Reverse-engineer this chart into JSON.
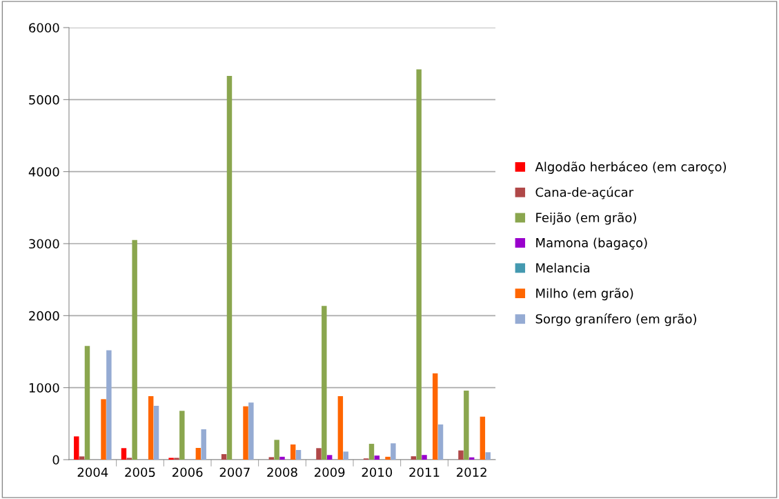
{
  "chart_data": {
    "type": "bar",
    "categories": [
      "2004",
      "2005",
      "2006",
      "2007",
      "2008",
      "2009",
      "2010",
      "2011",
      "2012"
    ],
    "series": [
      {
        "name": "Algodão herbáceo (em caroço)",
        "color": "#ff0000",
        "values": [
          323,
          160,
          25,
          0,
          0,
          0,
          0,
          0,
          0
        ]
      },
      {
        "name": "Cana-de-açúcar",
        "color": "#b04848",
        "values": [
          45,
          25,
          25,
          77,
          35,
          160,
          17,
          47,
          128
        ]
      },
      {
        "name": "Feijão (em grão)",
        "color": "#8aa64e",
        "values": [
          1580,
          3050,
          678,
          5330,
          275,
          2135,
          220,
          5420,
          959
        ]
      },
      {
        "name": "Mamona (bagaço)",
        "color": "#9900cc",
        "values": [
          0,
          0,
          0,
          0,
          40,
          64,
          57,
          65,
          32
        ]
      },
      {
        "name": "Melancia",
        "color": "#4499b0",
        "values": [
          0,
          0,
          0,
          0,
          0,
          0,
          0,
          0,
          0
        ]
      },
      {
        "name": "Milho (em grão)",
        "color": "#ff6600",
        "values": [
          840,
          882,
          163,
          741,
          211,
          882,
          40,
          1198,
          597
        ]
      },
      {
        "name": "Sorgo granífero (em grão)",
        "color": "#95abd3",
        "values": [
          1520,
          748,
          422,
          793,
          134,
          112,
          227,
          489,
          103
        ]
      }
    ],
    "ylim": [
      0,
      6000
    ],
    "yticks": [
      0,
      1000,
      2000,
      3000,
      4000,
      5000,
      6000
    ],
    "grid": "y",
    "legend": "right"
  }
}
